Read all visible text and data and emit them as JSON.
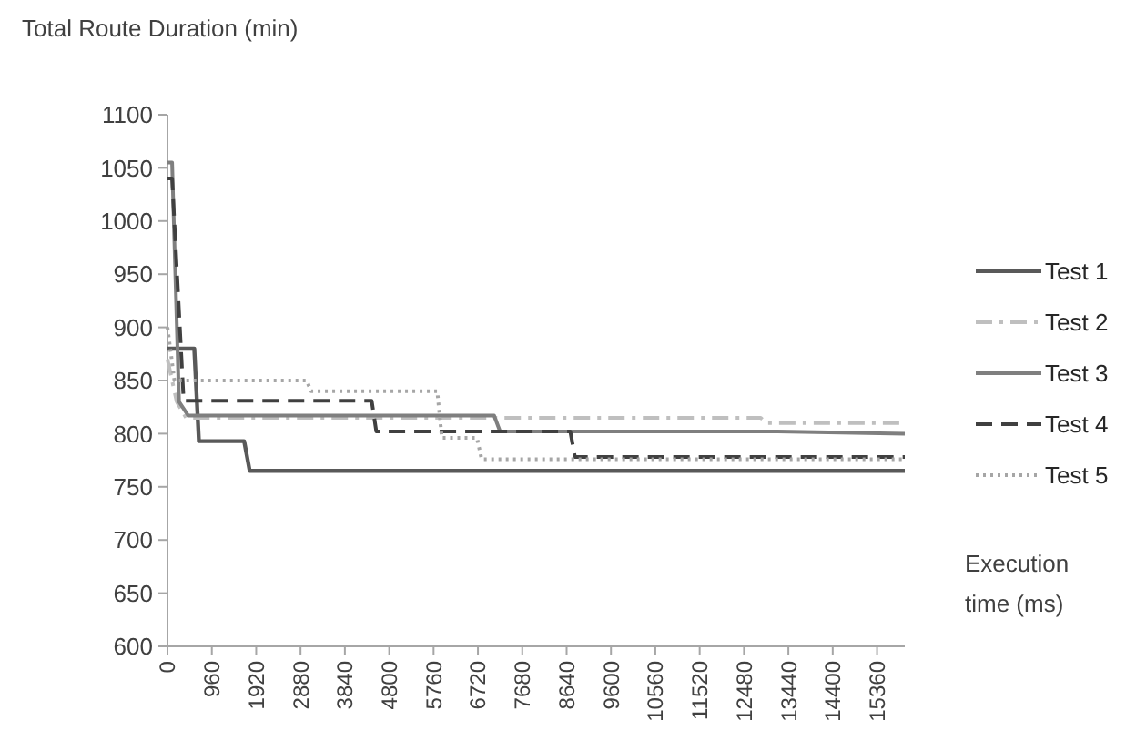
{
  "chart_data": {
    "type": "line",
    "ylabel": "Total Route Duration (min)",
    "xlabel": "Execution time (ms)",
    "xlim": [
      0,
      15960
    ],
    "xticks": [
      0,
      960,
      1920,
      2880,
      3840,
      4800,
      5760,
      6720,
      7680,
      8640,
      9600,
      10560,
      11520,
      12480,
      13440,
      14400,
      15360
    ],
    "ylim": [
      600,
      1100
    ],
    "yticks": [
      600,
      650,
      700,
      750,
      800,
      850,
      900,
      950,
      1000,
      1050,
      1100
    ],
    "grid": false,
    "legend": "right",
    "marker": "none",
    "series": [
      {
        "name": "Test 1",
        "color": "#595959",
        "line_style": "solid",
        "x": [
          0,
          580,
          680,
          1660,
          1780,
          15960
        ],
        "values": [
          880,
          880,
          793,
          793,
          765,
          765
        ]
      },
      {
        "name": "Test 2",
        "color": "#bfbfbf",
        "line_style": "dashdot",
        "x": [
          0,
          200,
          400,
          12840,
          12960,
          15960
        ],
        "values": [
          870,
          830,
          815,
          815,
          810,
          810
        ]
      },
      {
        "name": "Test 3",
        "color": "#7f7f7f",
        "line_style": "solid",
        "x": [
          0,
          100,
          250,
          450,
          7070,
          7200,
          13210,
          15960
        ],
        "values": [
          1055,
          1055,
          830,
          817,
          817,
          802,
          802,
          800
        ]
      },
      {
        "name": "Test 4",
        "color": "#404040",
        "line_style": "dashed",
        "x": [
          0,
          100,
          350,
          4420,
          4520,
          8720,
          8820,
          15960
        ],
        "values": [
          1040,
          1040,
          831,
          831,
          802,
          802,
          778,
          778
        ]
      },
      {
        "name": "Test 5",
        "color": "#a6a6a6",
        "line_style": "dotted",
        "x": [
          0,
          150,
          3010,
          3110,
          5840,
          5940,
          6700,
          6800,
          15960
        ],
        "values": [
          900,
          850,
          850,
          840,
          840,
          796,
          796,
          776,
          776
        ]
      }
    ]
  }
}
